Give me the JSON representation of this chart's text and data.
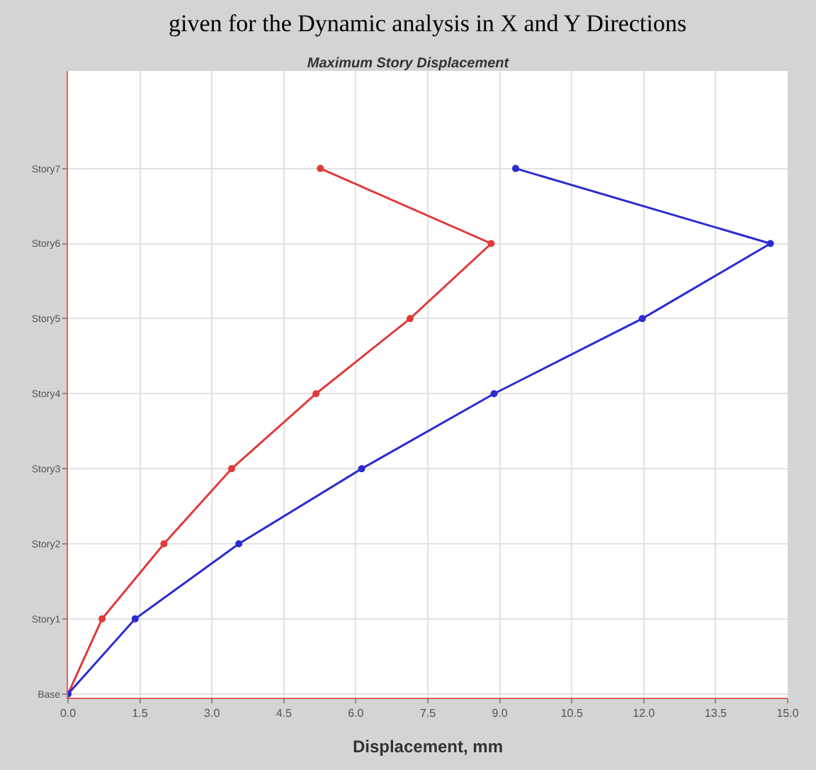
{
  "chart_data": {
    "type": "line",
    "orientation": "horizontal",
    "title": "Maximum Story Displacement",
    "xlabel": "Displacement, mm",
    "annotations": [
      "given for the Dynamic analysis in X and Y Directions"
    ],
    "categories": [
      "Story7",
      "Story6",
      "Story5",
      "Story4",
      "Story3",
      "Story2",
      "Story1",
      "Base"
    ],
    "series": [
      {
        "color": "#e03a3a",
        "values": [
          5.26,
          8.82,
          7.13,
          5.17,
          3.41,
          2.0,
          0.71,
          0
        ]
      },
      {
        "color": "#2b2bd0",
        "values": [
          9.33,
          14.64,
          11.97,
          8.88,
          6.12,
          3.56,
          1.4,
          0
        ]
      }
    ],
    "xlim": [
      0,
      15
    ],
    "xticks": [
      {
        "value": 0,
        "label": "0.0"
      },
      1.5,
      {
        "value": 3,
        "label": "3.0"
      },
      4.5,
      {
        "value": 6,
        "label": "6.0"
      },
      7.5,
      {
        "value": 9,
        "label": "9.0"
      },
      10.5,
      {
        "value": 12,
        "label": "12.0"
      },
      13.5,
      {
        "value": 15,
        "label": "15.0"
      }
    ],
    "grid": true,
    "marker": "circle",
    "line_style": "solid"
  }
}
